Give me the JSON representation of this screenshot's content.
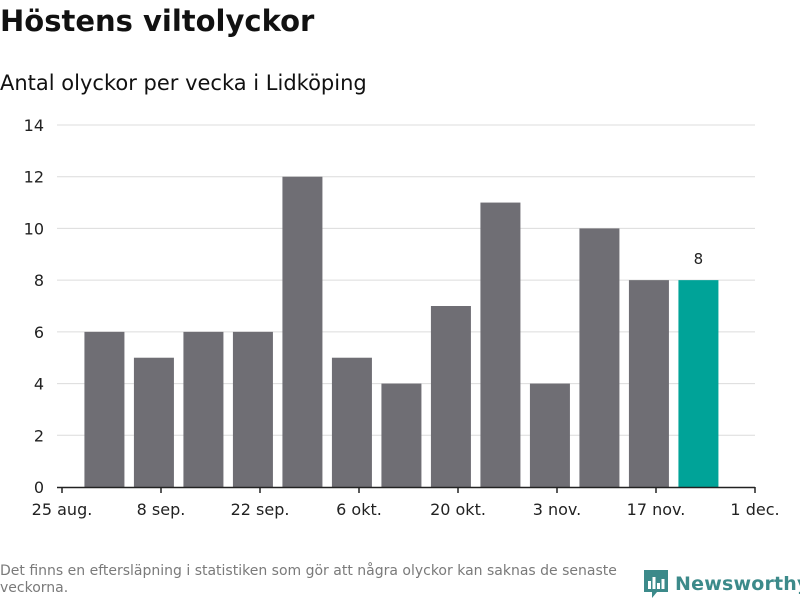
{
  "title": "Höstens viltolyckor",
  "subtitle": "Antal olyckor per vecka i Lidköping",
  "footnote": "Det finns en eftersläpning i statistiken som gör att några olyckor kan saknas de senaste veckorna.",
  "brand": {
    "name": "Newsworthy",
    "logo_icon": "bar-chart-speech-bubble-icon",
    "color": "#3c8a8a"
  },
  "colors": {
    "bar": "#6f6e74",
    "highlight": "#00a398",
    "grid": "#dcdcdc"
  },
  "chart_data": {
    "type": "bar",
    "x": [
      "2023-08-28",
      "2023-09-04",
      "2023-09-11",
      "2023-09-18",
      "2023-09-25",
      "2023-10-02",
      "2023-10-09",
      "2023-10-16",
      "2023-10-23",
      "2023-10-30",
      "2023-11-06",
      "2023-11-13",
      "2023-11-20"
    ],
    "values": [
      6,
      5,
      6,
      6,
      12,
      5,
      4,
      7,
      11,
      4,
      10,
      8,
      8
    ],
    "highlight_last": true,
    "data_labels": [
      {
        "index": 12,
        "text": "8"
      }
    ],
    "x_ticks": [
      "25 aug.",
      "8 sep.",
      "22 sep.",
      "6 okt.",
      "20 okt.",
      "3 nov.",
      "17 nov.",
      "1 dec."
    ],
    "y_ticks": [
      "0",
      "2",
      "4",
      "6",
      "8",
      "10",
      "12",
      "14"
    ],
    "ylim": [
      0,
      14
    ],
    "grid": true,
    "legend": "none"
  }
}
